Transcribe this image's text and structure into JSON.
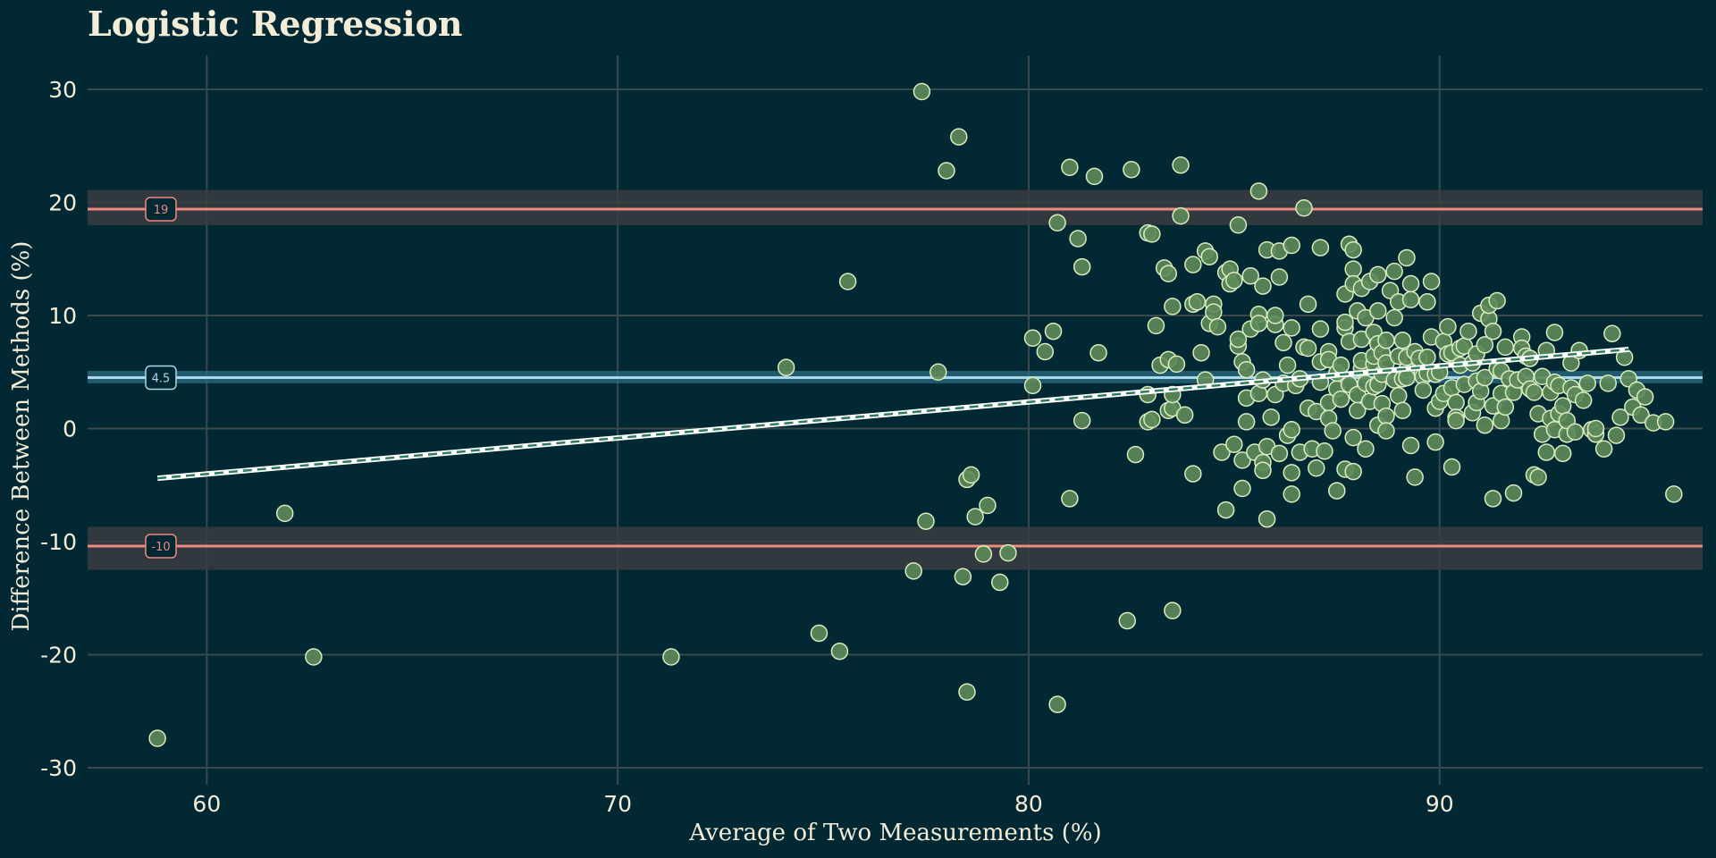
{
  "colors": {
    "background": "#022833",
    "grid": "#3a4a4c",
    "text": "#f3ecd6",
    "point_fill": "#5e8a5a",
    "point_stroke": "#d9ecc0",
    "loa": "#f08a80",
    "loa_band": "#3a3c41",
    "mean": "#a8d8ea",
    "mean_band": "#2f6f86",
    "trend_under": "#ffffff",
    "trend_dash": "#2e7d5b"
  },
  "chart_data": {
    "type": "scatter",
    "title": "Logistic Regression",
    "xlabel": "Average of Two Measurements (%)",
    "ylabel": "Difference Between Methods (%)",
    "xlim": [
      57.1,
      96.4
    ],
    "ylim": [
      -31.5,
      33
    ],
    "xticks": [
      60,
      70,
      80,
      90
    ],
    "yticks": [
      -30,
      -20,
      -10,
      0,
      10,
      20,
      30
    ],
    "grid": true,
    "mean_difference": {
      "value": 4.5,
      "label": "4.5",
      "ci": [
        4.0,
        5.1
      ]
    },
    "upper_loa": {
      "value": 19.4,
      "label": "19",
      "ci": [
        18.0,
        21.1
      ]
    },
    "lower_loa": {
      "value": -10.4,
      "label": "-10",
      "ci": [
        -12.5,
        -8.7
      ]
    },
    "trend_line": {
      "x": [
        58.8,
        94.6
      ],
      "y": [
        -4.4,
        7.0
      ]
    },
    "points": [
      [
        58.8,
        -27.4
      ],
      [
        61.9,
        -7.5
      ],
      [
        62.6,
        -20.2
      ],
      [
        71.3,
        -20.2
      ],
      [
        74.1,
        5.4
      ],
      [
        74.9,
        -18.1
      ],
      [
        75.4,
        -19.7
      ],
      [
        75.6,
        13.0
      ],
      [
        77.2,
        -12.6
      ],
      [
        77.4,
        29.8
      ],
      [
        77.5,
        -8.2
      ],
      [
        77.8,
        5.0
      ],
      [
        78.0,
        22.8
      ],
      [
        78.3,
        25.8
      ],
      [
        78.4,
        -13.1
      ],
      [
        78.5,
        -23.3
      ],
      [
        78.5,
        -4.5
      ],
      [
        78.6,
        -4.1
      ],
      [
        78.7,
        -7.8
      ],
      [
        78.9,
        -11.1
      ],
      [
        79.0,
        -6.8
      ],
      [
        79.3,
        -13.6
      ],
      [
        79.5,
        -11.0
      ],
      [
        80.1,
        3.8
      ],
      [
        80.1,
        8.0
      ],
      [
        80.4,
        6.8
      ],
      [
        80.6,
        8.6
      ],
      [
        80.7,
        -24.4
      ],
      [
        80.7,
        18.2
      ],
      [
        81.0,
        23.1
      ],
      [
        81.0,
        -6.2
      ],
      [
        81.2,
        16.8
      ],
      [
        81.3,
        14.3
      ],
      [
        81.3,
        0.7
      ],
      [
        81.6,
        22.3
      ],
      [
        81.7,
        6.7
      ],
      [
        82.4,
        -17.0
      ],
      [
        82.5,
        22.9
      ],
      [
        82.6,
        -2.3
      ],
      [
        82.9,
        17.3
      ],
      [
        82.9,
        3.0
      ],
      [
        82.9,
        0.6
      ],
      [
        83.0,
        17.2
      ],
      [
        83.0,
        0.8
      ],
      [
        83.1,
        9.1
      ],
      [
        83.2,
        5.6
      ],
      [
        83.3,
        14.2
      ],
      [
        83.4,
        1.6
      ],
      [
        83.4,
        6.1
      ],
      [
        83.4,
        13.7
      ],
      [
        83.5,
        10.8
      ],
      [
        83.5,
        1.8
      ],
      [
        83.5,
        3.0
      ],
      [
        83.5,
        -16.1
      ],
      [
        83.6,
        5.7
      ],
      [
        83.7,
        18.8
      ],
      [
        83.7,
        23.3
      ],
      [
        83.8,
        1.2
      ],
      [
        84.0,
        11.0
      ],
      [
        84.0,
        14.5
      ],
      [
        84.0,
        -4.0
      ],
      [
        84.1,
        11.2
      ],
      [
        84.2,
        6.7
      ],
      [
        84.3,
        15.7
      ],
      [
        84.3,
        4.3
      ],
      [
        84.4,
        15.2
      ],
      [
        84.4,
        9.3
      ],
      [
        84.5,
        11.0
      ],
      [
        84.5,
        10.3
      ],
      [
        84.6,
        9.0
      ],
      [
        84.7,
        -2.1
      ],
      [
        84.8,
        -7.2
      ],
      [
        84.8,
        13.8
      ],
      [
        84.9,
        12.8
      ],
      [
        84.9,
        14.1
      ],
      [
        85.0,
        13.1
      ],
      [
        85.0,
        -1.4
      ],
      [
        85.1,
        18.0
      ],
      [
        85.1,
        7.3
      ],
      [
        85.1,
        7.9
      ],
      [
        85.2,
        -2.8
      ],
      [
        85.2,
        5.9
      ],
      [
        85.2,
        -5.3
      ],
      [
        85.3,
        2.7
      ],
      [
        85.3,
        0.6
      ],
      [
        85.3,
        5.2
      ],
      [
        85.4,
        13.5
      ],
      [
        85.4,
        8.8
      ],
      [
        85.5,
        -2.1
      ],
      [
        85.6,
        21.0
      ],
      [
        85.6,
        10.1
      ],
      [
        85.6,
        3.1
      ],
      [
        85.6,
        9.3
      ],
      [
        85.7,
        12.6
      ],
      [
        85.7,
        -3.0
      ],
      [
        85.7,
        4.3
      ],
      [
        85.7,
        -3.7
      ],
      [
        85.8,
        -1.6
      ],
      [
        85.8,
        15.8
      ],
      [
        85.8,
        -8.0
      ],
      [
        85.9,
        1.0
      ],
      [
        86.0,
        3.0
      ],
      [
        86.0,
        9.2
      ],
      [
        86.0,
        10.0
      ],
      [
        86.1,
        15.7
      ],
      [
        86.1,
        -2.2
      ],
      [
        86.1,
        13.4
      ],
      [
        86.2,
        7.6
      ],
      [
        86.2,
        4.0
      ],
      [
        86.3,
        -0.6
      ],
      [
        86.3,
        5.6
      ],
      [
        86.4,
        16.2
      ],
      [
        86.4,
        -3.9
      ],
      [
        86.4,
        -5.8
      ],
      [
        86.4,
        8.9
      ],
      [
        86.4,
        -0.1
      ],
      [
        86.5,
        3.8
      ],
      [
        86.6,
        -2.1
      ],
      [
        86.6,
        4.4
      ],
      [
        86.7,
        7.2
      ],
      [
        86.7,
        19.5
      ],
      [
        86.8,
        1.8
      ],
      [
        86.8,
        11.0
      ],
      [
        86.8,
        7.1
      ],
      [
        86.9,
        -1.8
      ],
      [
        87.0,
        -3.5
      ],
      [
        87.0,
        1.5
      ],
      [
        87.1,
        16.0
      ],
      [
        87.1,
        5.9
      ],
      [
        87.1,
        8.8
      ],
      [
        87.1,
        4.1
      ],
      [
        87.2,
        -2.0
      ],
      [
        87.3,
        6.8
      ],
      [
        87.3,
        0.9
      ],
      [
        87.3,
        2.3
      ],
      [
        87.3,
        6.1
      ],
      [
        87.4,
        -0.2
      ],
      [
        87.5,
        -5.5
      ],
      [
        87.5,
        4.9
      ],
      [
        87.5,
        3.5
      ],
      [
        87.6,
        5.6
      ],
      [
        87.6,
        2.6
      ],
      [
        87.7,
        -3.6
      ],
      [
        87.7,
        8.9
      ],
      [
        87.7,
        9.4
      ],
      [
        87.7,
        11.9
      ],
      [
        87.8,
        3.9
      ],
      [
        87.8,
        16.3
      ],
      [
        87.8,
        7.7
      ],
      [
        87.9,
        -0.8
      ],
      [
        87.9,
        14.1
      ],
      [
        87.9,
        -3.8
      ],
      [
        87.9,
        12.8
      ],
      [
        87.9,
        15.8
      ],
      [
        88.0,
        10.4
      ],
      [
        88.0,
        1.6
      ],
      [
        88.0,
        3.0
      ],
      [
        88.1,
        5.3
      ],
      [
        88.1,
        7.9
      ],
      [
        88.1,
        12.4
      ],
      [
        88.1,
        6.0
      ],
      [
        88.2,
        -1.8
      ],
      [
        88.2,
        4.0
      ],
      [
        88.2,
        9.8
      ],
      [
        88.3,
        13.0
      ],
      [
        88.3,
        2.4
      ],
      [
        88.4,
        3.7
      ],
      [
        88.4,
        8.5
      ],
      [
        88.4,
        5.7
      ],
      [
        88.4,
        6.4
      ],
      [
        88.5,
        7.5
      ],
      [
        88.5,
        3.9
      ],
      [
        88.5,
        13.6
      ],
      [
        88.5,
        10.4
      ],
      [
        88.5,
        0.3
      ],
      [
        88.6,
        2.2
      ],
      [
        88.6,
        6.7
      ],
      [
        88.6,
        4.8
      ],
      [
        88.7,
        1.1
      ],
      [
        88.7,
        -0.2
      ],
      [
        88.7,
        5.8
      ],
      [
        88.7,
        7.8
      ],
      [
        88.8,
        12.2
      ],
      [
        88.9,
        4.3
      ],
      [
        88.9,
        13.9
      ],
      [
        88.9,
        9.8
      ],
      [
        89.0,
        6.4
      ],
      [
        89.0,
        2.9
      ],
      [
        89.0,
        11.2
      ],
      [
        89.1,
        4.4
      ],
      [
        89.1,
        7.8
      ],
      [
        89.1,
        1.6
      ],
      [
        89.2,
        5.2
      ],
      [
        89.2,
        6.3
      ],
      [
        89.2,
        15.1
      ],
      [
        89.2,
        4.5
      ],
      [
        89.3,
        -1.5
      ],
      [
        89.3,
        12.8
      ],
      [
        89.3,
        11.4
      ],
      [
        89.4,
        6.8
      ],
      [
        89.4,
        -4.3
      ],
      [
        89.5,
        6.2
      ],
      [
        89.6,
        4.6
      ],
      [
        89.6,
        3.4
      ],
      [
        89.7,
        4.9
      ],
      [
        89.7,
        6.3
      ],
      [
        89.7,
        11.2
      ],
      [
        89.8,
        13.0
      ],
      [
        89.8,
        8.1
      ],
      [
        89.9,
        4.8
      ],
      [
        89.9,
        1.8
      ],
      [
        89.9,
        -1.2
      ],
      [
        90.0,
        2.4
      ],
      [
        90.0,
        5.0
      ],
      [
        90.1,
        7.7
      ],
      [
        90.1,
        3.1
      ],
      [
        90.2,
        6.6
      ],
      [
        90.2,
        9.0
      ],
      [
        90.3,
        -3.4
      ],
      [
        90.3,
        3.6
      ],
      [
        90.3,
        6.7
      ],
      [
        90.4,
        2.3
      ],
      [
        90.4,
        1.0
      ],
      [
        90.4,
        0.7
      ],
      [
        90.5,
        7.1
      ],
      [
        90.5,
        5.6
      ],
      [
        90.6,
        7.3
      ],
      [
        90.6,
        3.9
      ],
      [
        90.7,
        8.6
      ],
      [
        90.8,
        5.8
      ],
      [
        90.8,
        1.4
      ],
      [
        90.9,
        2.3
      ],
      [
        90.9,
        4.2
      ],
      [
        90.9,
        6.6
      ],
      [
        91.0,
        10.2
      ],
      [
        91.0,
        3.3
      ],
      [
        91.1,
        7.4
      ],
      [
        91.1,
        0.3
      ],
      [
        91.1,
        4.5
      ],
      [
        91.2,
        9.7
      ],
      [
        91.2,
        10.9
      ],
      [
        91.3,
        2.0
      ],
      [
        91.3,
        -6.2
      ],
      [
        91.3,
        8.6
      ],
      [
        91.4,
        5.3
      ],
      [
        91.4,
        11.3
      ],
      [
        91.5,
        5.1
      ],
      [
        91.5,
        3.1
      ],
      [
        91.5,
        0.7
      ],
      [
        91.6,
        7.2
      ],
      [
        91.6,
        1.9
      ],
      [
        91.7,
        4.4
      ],
      [
        91.8,
        -5.7
      ],
      [
        91.8,
        3.2
      ],
      [
        91.9,
        4.3
      ],
      [
        92.0,
        8.1
      ],
      [
        92.0,
        7.1
      ],
      [
        92.1,
        6.4
      ],
      [
        92.1,
        4.6
      ],
      [
        92.2,
        6.2
      ],
      [
        92.2,
        3.5
      ],
      [
        92.3,
        3.2
      ],
      [
        92.3,
        -4.1
      ],
      [
        92.4,
        -4.3
      ],
      [
        92.4,
        1.3
      ],
      [
        92.5,
        -0.5
      ],
      [
        92.5,
        4.6
      ],
      [
        92.6,
        6.9
      ],
      [
        92.6,
        -2.1
      ],
      [
        92.7,
        3.2
      ],
      [
        92.7,
        0.9
      ],
      [
        92.8,
        4.1
      ],
      [
        92.8,
        8.5
      ],
      [
        92.8,
        -0.1
      ],
      [
        92.9,
        3.8
      ],
      [
        92.9,
        1.3
      ],
      [
        93.0,
        2.0
      ],
      [
        93.0,
        -2.2
      ],
      [
        93.1,
        -0.5
      ],
      [
        93.1,
        0.7
      ],
      [
        93.2,
        3.6
      ],
      [
        93.2,
        5.8
      ],
      [
        93.3,
        3.0
      ],
      [
        93.3,
        -0.3
      ],
      [
        93.4,
        6.9
      ],
      [
        93.5,
        2.5
      ],
      [
        93.6,
        4.0
      ],
      [
        93.7,
        -0.1
      ],
      [
        93.8,
        -0.5
      ],
      [
        93.8,
        0.0
      ],
      [
        94.0,
        -1.8
      ],
      [
        94.1,
        4.0
      ],
      [
        94.2,
        8.4
      ],
      [
        94.3,
        -0.6
      ],
      [
        94.4,
        1.0
      ],
      [
        94.5,
        6.3
      ],
      [
        94.6,
        4.4
      ],
      [
        94.7,
        1.9
      ],
      [
        94.8,
        3.4
      ],
      [
        94.9,
        1.2
      ],
      [
        95.0,
        2.8
      ],
      [
        95.2,
        0.5
      ],
      [
        95.5,
        0.6
      ],
      [
        95.7,
        -5.8
      ]
    ]
  }
}
